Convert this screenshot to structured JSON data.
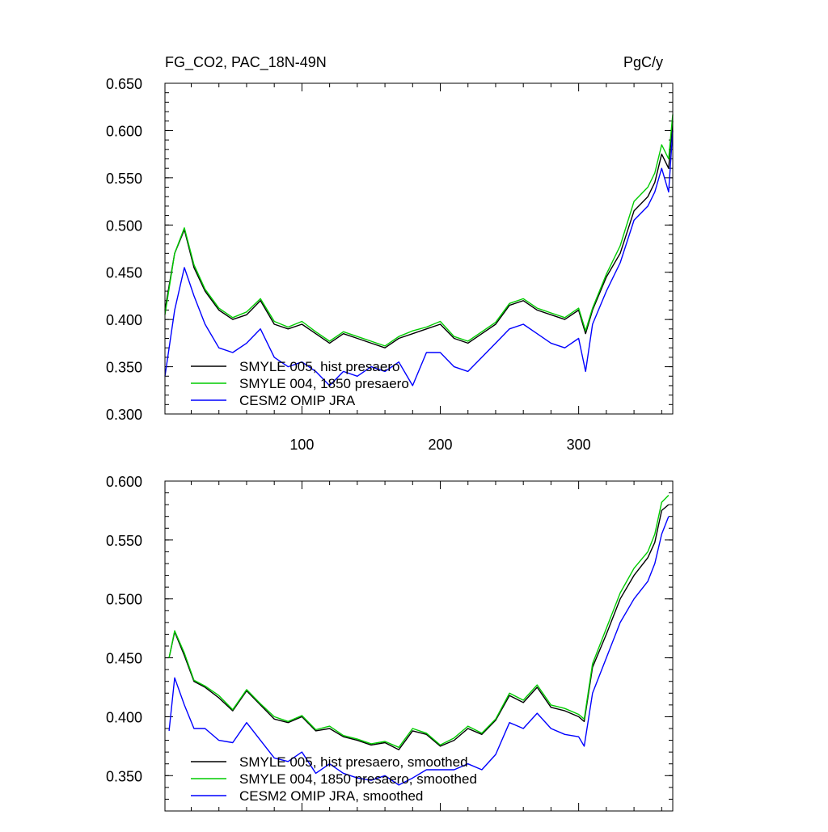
{
  "chart_data": [
    {
      "type": "line",
      "title": "FG_CO2, PAC_18N-49N",
      "units": "PgC/y",
      "xlabel": "",
      "ylabel": "",
      "xlim": [
        1,
        368
      ],
      "ylim": [
        0.3,
        0.65
      ],
      "xticks": [
        100,
        200,
        300
      ],
      "yticks": [
        0.3,
        0.35,
        0.4,
        0.45,
        0.5,
        0.55,
        0.6,
        0.65
      ],
      "ytick_labels": [
        "0.300",
        "0.350",
        "0.400",
        "0.450",
        "0.500",
        "0.550",
        "0.600",
        "0.650"
      ],
      "xtick_labels": [
        "100",
        "200",
        "300"
      ],
      "legend_position": "bottom-left",
      "series": [
        {
          "name": "SMYLE 005, hist presaero",
          "color": "#000000",
          "x": [
            1,
            8,
            15,
            22,
            30,
            40,
            50,
            60,
            70,
            80,
            90,
            100,
            110,
            120,
            130,
            140,
            150,
            160,
            170,
            180,
            190,
            200,
            210,
            220,
            230,
            240,
            250,
            260,
            270,
            280,
            290,
            300,
            305,
            310,
            320,
            330,
            340,
            350,
            355,
            360,
            365,
            368
          ],
          "y": [
            0.41,
            0.47,
            0.495,
            0.455,
            0.43,
            0.41,
            0.4,
            0.405,
            0.42,
            0.395,
            0.39,
            0.395,
            0.385,
            0.375,
            0.385,
            0.38,
            0.375,
            0.37,
            0.38,
            0.385,
            0.39,
            0.395,
            0.38,
            0.375,
            0.385,
            0.395,
            0.415,
            0.42,
            0.41,
            0.405,
            0.4,
            0.41,
            0.385,
            0.41,
            0.445,
            0.47,
            0.515,
            0.53,
            0.545,
            0.575,
            0.56,
            0.61
          ]
        },
        {
          "name": "SMYLE 004, 1850 presaero",
          "color": "#00cc00",
          "x": [
            1,
            8,
            15,
            22,
            30,
            40,
            50,
            60,
            70,
            80,
            90,
            100,
            110,
            120,
            130,
            140,
            150,
            160,
            170,
            180,
            190,
            200,
            210,
            220,
            230,
            240,
            250,
            260,
            270,
            280,
            290,
            300,
            305,
            310,
            320,
            330,
            340,
            350,
            355,
            360,
            365,
            368
          ],
          "y": [
            0.405,
            0.47,
            0.497,
            0.458,
            0.432,
            0.412,
            0.402,
            0.408,
            0.422,
            0.398,
            0.392,
            0.398,
            0.387,
            0.377,
            0.387,
            0.382,
            0.377,
            0.372,
            0.382,
            0.388,
            0.392,
            0.398,
            0.382,
            0.377,
            0.387,
            0.397,
            0.417,
            0.422,
            0.412,
            0.407,
            0.402,
            0.412,
            0.388,
            0.412,
            0.448,
            0.478,
            0.525,
            0.54,
            0.555,
            0.585,
            0.57,
            0.617
          ]
        },
        {
          "name": "CESM2 OMIP JRA",
          "color": "#0000ff",
          "x": [
            1,
            8,
            15,
            22,
            30,
            40,
            50,
            60,
            70,
            80,
            90,
            100,
            110,
            120,
            130,
            140,
            150,
            160,
            170,
            180,
            190,
            200,
            210,
            220,
            230,
            240,
            250,
            260,
            270,
            280,
            290,
            300,
            305,
            310,
            320,
            330,
            340,
            350,
            355,
            360,
            365,
            368
          ],
          "y": [
            0.34,
            0.41,
            0.455,
            0.425,
            0.395,
            0.37,
            0.365,
            0.375,
            0.39,
            0.36,
            0.35,
            0.355,
            0.345,
            0.33,
            0.345,
            0.34,
            0.35,
            0.345,
            0.355,
            0.33,
            0.365,
            0.365,
            0.35,
            0.345,
            0.36,
            0.375,
            0.39,
            0.395,
            0.385,
            0.375,
            0.37,
            0.38,
            0.345,
            0.395,
            0.43,
            0.46,
            0.505,
            0.52,
            0.535,
            0.56,
            0.535,
            0.6
          ]
        }
      ]
    },
    {
      "type": "line",
      "title": "",
      "xlabel": "",
      "ylabel": "",
      "xlim": [
        1,
        368
      ],
      "ylim": [
        0.32,
        0.6
      ],
      "xticks": [
        100,
        200,
        300
      ],
      "yticks": [
        0.35,
        0.4,
        0.45,
        0.5,
        0.55,
        0.6
      ],
      "ytick_labels": [
        "0.350",
        "0.400",
        "0.450",
        "0.500",
        "0.550",
        "0.600"
      ],
      "legend_position": "bottom-left",
      "series": [
        {
          "name": "SMYLE 005, hist presaero, smoothed",
          "color": "#000000",
          "x": [
            4,
            8,
            15,
            22,
            30,
            40,
            50,
            60,
            70,
            80,
            90,
            100,
            110,
            120,
            130,
            140,
            150,
            160,
            170,
            180,
            190,
            200,
            210,
            220,
            230,
            240,
            250,
            260,
            270,
            280,
            290,
            300,
            304,
            310,
            320,
            330,
            340,
            350,
            355,
            360,
            365
          ],
          "y": [
            0.45,
            0.472,
            0.452,
            0.43,
            0.425,
            0.416,
            0.405,
            0.422,
            0.41,
            0.398,
            0.395,
            0.4,
            0.388,
            0.39,
            0.383,
            0.38,
            0.376,
            0.378,
            0.372,
            0.388,
            0.385,
            0.375,
            0.38,
            0.39,
            0.385,
            0.397,
            0.418,
            0.412,
            0.425,
            0.408,
            0.405,
            0.4,
            0.396,
            0.442,
            0.47,
            0.5,
            0.52,
            0.535,
            0.548,
            0.575,
            0.58
          ]
        },
        {
          "name": "SMYLE 004, 1850 presaero, smoothed",
          "color": "#00cc00",
          "x": [
            4,
            8,
            15,
            22,
            30,
            40,
            50,
            60,
            70,
            80,
            90,
            100,
            110,
            120,
            130,
            140,
            150,
            160,
            170,
            180,
            190,
            200,
            210,
            220,
            230,
            240,
            250,
            260,
            270,
            280,
            290,
            300,
            304,
            310,
            320,
            330,
            340,
            350,
            355,
            360,
            365
          ],
          "y": [
            0.45,
            0.473,
            0.454,
            0.431,
            0.426,
            0.418,
            0.406,
            0.423,
            0.411,
            0.4,
            0.396,
            0.401,
            0.389,
            0.392,
            0.384,
            0.381,
            0.377,
            0.379,
            0.374,
            0.39,
            0.386,
            0.376,
            0.382,
            0.392,
            0.386,
            0.398,
            0.42,
            0.414,
            0.427,
            0.41,
            0.407,
            0.402,
            0.398,
            0.445,
            0.475,
            0.505,
            0.526,
            0.54,
            0.555,
            0.582,
            0.588
          ]
        },
        {
          "name": "CESM2 OMIP JRA, smoothed",
          "color": "#0000ff",
          "x": [
            4,
            8,
            15,
            22,
            30,
            40,
            50,
            60,
            70,
            80,
            90,
            100,
            110,
            120,
            130,
            140,
            150,
            160,
            170,
            180,
            190,
            200,
            210,
            220,
            230,
            240,
            250,
            260,
            270,
            280,
            290,
            300,
            304,
            310,
            320,
            330,
            340,
            350,
            355,
            360,
            365
          ],
          "y": [
            0.388,
            0.433,
            0.41,
            0.39,
            0.39,
            0.38,
            0.378,
            0.395,
            0.38,
            0.365,
            0.362,
            0.37,
            0.352,
            0.36,
            0.352,
            0.348,
            0.346,
            0.35,
            0.342,
            0.348,
            0.355,
            0.355,
            0.355,
            0.36,
            0.355,
            0.368,
            0.395,
            0.39,
            0.403,
            0.39,
            0.385,
            0.383,
            0.375,
            0.42,
            0.45,
            0.48,
            0.5,
            0.515,
            0.53,
            0.555,
            0.57
          ]
        }
      ]
    }
  ]
}
